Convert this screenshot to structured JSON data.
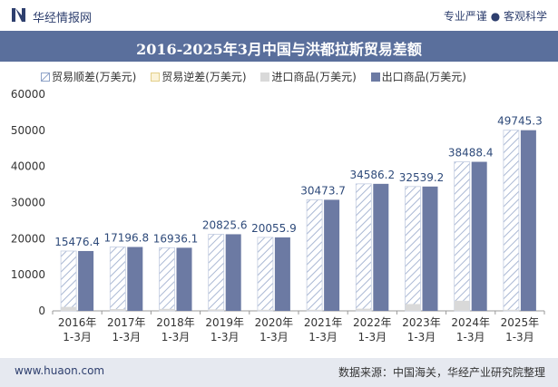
{
  "header": {
    "brand": "华经情报网",
    "slogan": "专业严谨 ● 客观科学"
  },
  "footer": {
    "site": "www.huaon.com",
    "source": "数据来源：中国海关，华经产业研究院整理"
  },
  "colors": {
    "export": "#6c7aa3",
    "import": "#d9d9d9",
    "surplus_hatch": "#aab8d4",
    "deficit": "#f2e4b3",
    "title_bg": "#5a6f9c"
  },
  "chart_data": {
    "type": "bar",
    "title": "2016-2025年3月中国与洪都拉斯贸易差额",
    "categories": [
      "2016年\n1-3月",
      "2017年\n1-3月",
      "2018年\n1-3月",
      "2019年\n1-3月",
      "2020年\n1-3月",
      "2021年\n1-3月",
      "2022年\n1-3月",
      "2023年\n1-3月",
      "2024年\n1-3月",
      "2025年\n1-3月"
    ],
    "series": [
      {
        "name": "贸易顺差(万美元)",
        "values": [
          15476.4,
          17196.8,
          16936.1,
          20825.6,
          20055.9,
          30473.7,
          34586.2,
          32539.2,
          38488.4,
          49745.3
        ]
      },
      {
        "name": "贸易逆差(万美元)",
        "values": [
          0,
          0,
          0,
          0,
          0,
          0,
          0,
          0,
          0,
          0
        ]
      },
      {
        "name": "进口商品(万美元)",
        "values": [
          1100,
          500,
          550,
          400,
          300,
          300,
          600,
          1900,
          2800,
          300
        ]
      },
      {
        "name": "出口商品(万美元)",
        "values": [
          16576.4,
          17696.8,
          17486.1,
          21225.6,
          20355.9,
          30773.7,
          35186.2,
          34439.2,
          41288.4,
          50045.3
        ]
      }
    ],
    "data_labels": [
      "15476.4",
      "17196.8",
      "16936.1",
      "20825.6",
      "20055.9",
      "30473.7",
      "34586.2",
      "32539.2",
      "38488.4",
      "49745.3"
    ],
    "y_ticks": [
      "0",
      "10000",
      "20000",
      "30000",
      "40000",
      "50000",
      "60000"
    ],
    "ylim": [
      0,
      60000
    ],
    "grid": false,
    "legend_position": "top"
  }
}
